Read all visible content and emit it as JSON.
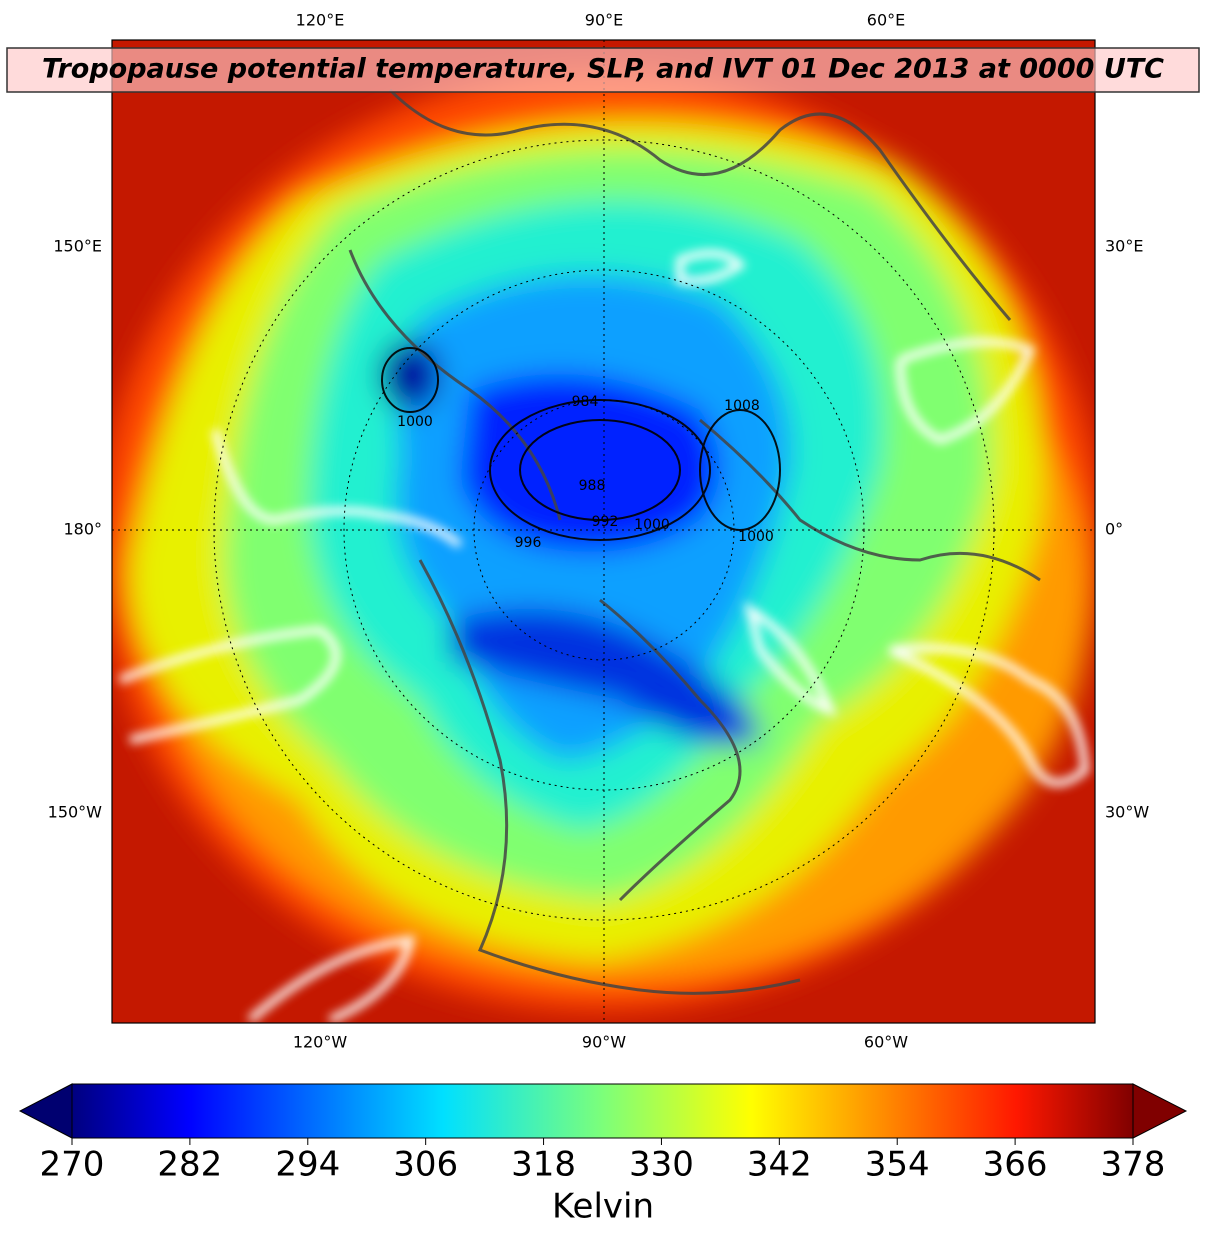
{
  "map": {
    "title": "Tropopause potential temperature, SLP, and IVT 01 Dec 2013 at 0000 UTC",
    "labels": {
      "top": [
        "120°E",
        "90°E",
        "60°E"
      ],
      "left": [
        "150°E",
        "180°",
        "150°W"
      ],
      "right": [
        "30°E",
        "0°",
        "30°W"
      ],
      "bottom": [
        "120°W",
        "90°W",
        "60°W"
      ]
    },
    "contour_labels": [
      "1000",
      "984",
      "1008",
      "988",
      "992",
      "996",
      "1000",
      "1000"
    ]
  },
  "colorbar": {
    "label": "Kelvin",
    "lim": [
      270,
      378
    ],
    "ticks": [
      270,
      282,
      294,
      306,
      318,
      330,
      342,
      354,
      366,
      378
    ]
  }
}
